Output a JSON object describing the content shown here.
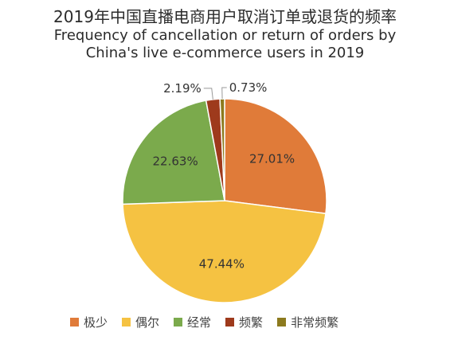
{
  "title": {
    "zh": "2019年中国直播电商用户取消订单或退货的频率",
    "en_line1": "Frequency of cancellation or return of orders by",
    "en_line2": "China's live e-commerce users in 2019"
  },
  "chart_data": {
    "type": "pie",
    "title": "2019年中国直播电商用户取消订单或退货的频率 / Frequency of cancellation or return of orders by China's live e-commerce users in 2019",
    "legend_position": "bottom",
    "slices": [
      {
        "name": "极少",
        "value": 27.01,
        "label": "27.01%",
        "color": "#E07B39"
      },
      {
        "name": "偶尔",
        "value": 47.44,
        "label": "47.44%",
        "color": "#F5C242"
      },
      {
        "name": "经常",
        "value": 22.63,
        "label": "22.63%",
        "color": "#7BAA4C"
      },
      {
        "name": "频繁",
        "value": 2.19,
        "label": "2.19%",
        "color": "#9E3A1C"
      },
      {
        "name": "非常频繁",
        "value": 0.73,
        "label": "0.73%",
        "color": "#8C7A1E"
      }
    ]
  }
}
